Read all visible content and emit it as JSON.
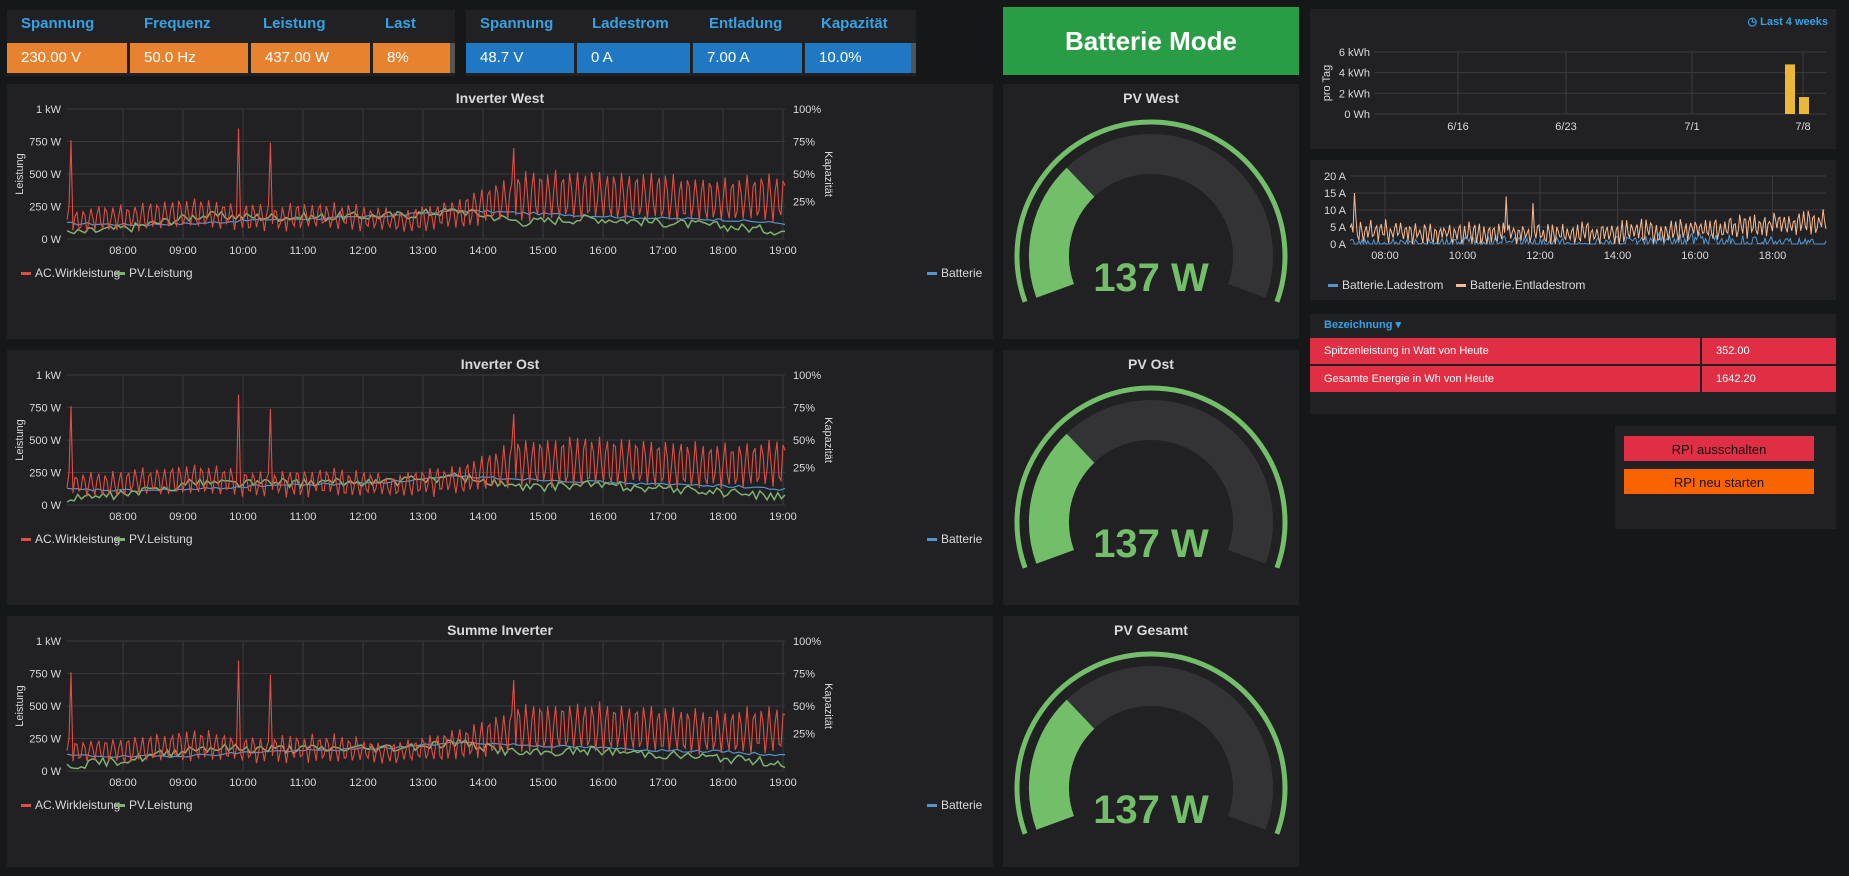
{
  "stats_left": {
    "headers": [
      "Spannung",
      "Frequenz",
      "Leistung",
      "Last"
    ],
    "values": [
      "230.00 V",
      "50.0 Hz",
      "437.00 W",
      "8%"
    ]
  },
  "stats_right": {
    "headers": [
      "Spannung",
      "Ladestrom",
      "Entladung",
      "Kapazität"
    ],
    "values": [
      "48.7 V",
      "0 A",
      "7.00 A",
      "10.0%"
    ]
  },
  "mode": "Batterie Mode",
  "colors": {
    "ac": "#e24d42",
    "pv": "#7eb26d",
    "battery": "#5195ce",
    "gauge": "#73bf69",
    "orange": "#e7822f",
    "blue": "#1f78c1",
    "red": "#e02f44"
  },
  "inverter_panels": [
    {
      "title": "Inverter West"
    },
    {
      "title": "Inverter Ost"
    },
    {
      "title": "Summe Inverter"
    }
  ],
  "inverter_axis": {
    "y_left_label": "Leistung",
    "y_right_label": "Kapazität",
    "y_left_ticks": [
      "0 W",
      "250 W",
      "500 W",
      "750 W",
      "1 kW"
    ],
    "y_right_ticks": [
      "25%",
      "50%",
      "75%",
      "100%"
    ],
    "x_ticks": [
      "08:00",
      "09:00",
      "10:00",
      "11:00",
      "12:00",
      "13:00",
      "14:00",
      "15:00",
      "16:00",
      "17:00",
      "18:00",
      "19:00"
    ],
    "legend_left": [
      "AC.Wirkleistung",
      "PV.Leistung"
    ],
    "legend_right": "Batterie"
  },
  "chart_data": [
    {
      "type": "line",
      "title": "Inverter West",
      "ylabel": "Leistung",
      "y2label": "Kapazität",
      "ylim": [
        0,
        1000
      ],
      "x": [
        "08:00",
        "09:00",
        "10:00",
        "11:00",
        "12:00",
        "13:00",
        "14:00",
        "15:00",
        "16:00",
        "17:00",
        "18:00",
        "19:00"
      ],
      "series": [
        {
          "name": "AC.Wirkleistung",
          "values": [
            150,
            170,
            200,
            160,
            180,
            140,
            200,
            330,
            340,
            320,
            300,
            320
          ]
        },
        {
          "name": "PV.Leistung",
          "values": [
            40,
            90,
            180,
            170,
            170,
            180,
            220,
            130,
            160,
            130,
            100,
            60
          ]
        },
        {
          "name": "Batterie",
          "values": [
            120,
            110,
            120,
            150,
            160,
            180,
            220,
            200,
            180,
            160,
            150,
            120
          ]
        }
      ]
    },
    {
      "type": "line",
      "title": "Inverter Ost",
      "ylabel": "Leistung",
      "y2label": "Kapazität",
      "ylim": [
        0,
        1000
      ],
      "x": [
        "08:00",
        "09:00",
        "10:00",
        "11:00",
        "12:00",
        "13:00",
        "14:00",
        "15:00",
        "16:00",
        "17:00",
        "18:00",
        "19:00"
      ],
      "series": [
        {
          "name": "AC.Wirkleistung",
          "values": [
            150,
            170,
            200,
            160,
            180,
            140,
            200,
            330,
            340,
            320,
            300,
            320
          ]
        },
        {
          "name": "PV.Leistung",
          "values": [
            40,
            90,
            180,
            170,
            170,
            180,
            220,
            130,
            160,
            130,
            100,
            60
          ]
        },
        {
          "name": "Batterie",
          "values": [
            120,
            110,
            120,
            150,
            160,
            180,
            220,
            200,
            180,
            160,
            150,
            120
          ]
        }
      ]
    },
    {
      "type": "line",
      "title": "Summe Inverter",
      "ylabel": "Leistung",
      "y2label": "Kapazität",
      "ylim": [
        0,
        1000
      ],
      "x": [
        "08:00",
        "09:00",
        "10:00",
        "11:00",
        "12:00",
        "13:00",
        "14:00",
        "15:00",
        "16:00",
        "17:00",
        "18:00",
        "19:00"
      ],
      "series": [
        {
          "name": "AC.Wirkleistung",
          "values": [
            150,
            170,
            200,
            160,
            180,
            140,
            200,
            330,
            340,
            320,
            300,
            320
          ]
        },
        {
          "name": "PV.Leistung",
          "values": [
            40,
            90,
            180,
            170,
            170,
            180,
            220,
            130,
            160,
            130,
            100,
            60
          ]
        },
        {
          "name": "Batterie",
          "values": [
            120,
            110,
            120,
            150,
            160,
            180,
            220,
            200,
            180,
            160,
            150,
            120
          ]
        }
      ]
    },
    {
      "type": "bar",
      "ylabel": "pro Tag",
      "y_ticks": [
        "0 Wh",
        "2 kWh",
        "4 kWh",
        "6 kWh"
      ],
      "x_ticks": [
        "6/16",
        "6/23",
        "7/1",
        "7/8"
      ],
      "categories": [
        "7/7",
        "7/8"
      ],
      "values": [
        4.8,
        1.64
      ],
      "ylim": [
        0,
        6
      ]
    },
    {
      "type": "line",
      "y_ticks": [
        "0 A",
        "5 A",
        "10 A",
        "15 A",
        "20 A"
      ],
      "x_ticks": [
        "08:00",
        "10:00",
        "12:00",
        "14:00",
        "16:00",
        "18:00"
      ],
      "ylim": [
        0,
        20
      ],
      "series": [
        {
          "name": "Batterie.Ladestrom",
          "values": [
            0,
            0,
            1,
            0,
            2,
            1,
            0
          ]
        },
        {
          "name": "Batterie.Entladestrom",
          "values": [
            4,
            3,
            3,
            3,
            4,
            5,
            7
          ]
        }
      ]
    }
  ],
  "gauges": [
    {
      "title": "PV West",
      "value": "137 W",
      "fraction": 0.137
    },
    {
      "title": "PV Ost",
      "value": "137 W",
      "fraction": 0.137
    },
    {
      "title": "PV Gesamt",
      "value": "137 W",
      "fraction": 0.137
    }
  ],
  "energy_panel": {
    "range": "Last 4 weeks"
  },
  "current_panel": {
    "legend": [
      "Batterie.Ladestrom",
      "Batterie.Entladestrom"
    ]
  },
  "table": {
    "header": "Bezeichnung",
    "rows": [
      {
        "label": "Spitzenleistung in Watt von Heute",
        "value": "352.00"
      },
      {
        "label": "Gesamte Energie in Wh von Heute",
        "value": "1642.20"
      }
    ]
  },
  "buttons": {
    "shutdown": "RPI ausschalten",
    "restart": "RPI neu starten"
  }
}
